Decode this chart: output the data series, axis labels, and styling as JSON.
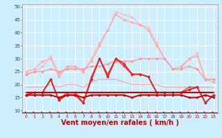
{
  "background_color": "#cceeff",
  "grid_color": "#ffffff",
  "xlabel": "Vent moyen/en rafales ( km/h )",
  "xlabel_color": "#cc0000",
  "xlabel_fontsize": 7,
  "xtick_color": "#cc0000",
  "ytick_color": "#444444",
  "ylim": [
    9,
    51
  ],
  "xlim": [
    -0.5,
    23.5
  ],
  "yticks": [
    10,
    15,
    20,
    25,
    30,
    35,
    40,
    45,
    50
  ],
  "xticks": [
    0,
    1,
    2,
    3,
    4,
    5,
    6,
    7,
    8,
    9,
    10,
    11,
    12,
    13,
    14,
    15,
    16,
    17,
    18,
    19,
    20,
    21,
    22,
    23
  ],
  "lines": [
    {
      "y": [
        24,
        25,
        27,
        31,
        24,
        26,
        27,
        25,
        30,
        36,
        41,
        48,
        47,
        46,
        43,
        42,
        36,
        30,
        26,
        26,
        30,
        32,
        22,
        22
      ],
      "color": "#ffbbbb",
      "lw": 1.0,
      "marker": "D",
      "ms": 2.0,
      "zorder": 2
    },
    {
      "y": [
        25,
        26,
        29,
        30,
        23,
        27,
        27,
        25,
        29,
        35,
        41,
        47,
        45,
        44,
        43,
        41,
        35,
        30,
        26,
        27,
        30,
        31,
        22,
        21
      ],
      "color": "#ffaaaa",
      "lw": 1.0,
      "marker": "D",
      "ms": 2.0,
      "zorder": 2
    },
    {
      "y": [
        24,
        25,
        25,
        26,
        25,
        26,
        26,
        26,
        27,
        27,
        28,
        29,
        29,
        29,
        30,
        30,
        30,
        30,
        26,
        26,
        27,
        26,
        22,
        22
      ],
      "color": "#ff9999",
      "lw": 1.0,
      "marker": "D",
      "ms": 2.0,
      "zorder": 2
    },
    {
      "y": [
        16,
        17,
        17,
        22,
        14,
        16,
        16,
        13,
        22,
        30,
        23,
        30,
        28,
        24,
        24,
        23,
        17,
        17,
        17,
        17,
        18,
        19,
        13,
        16
      ],
      "color": "#dd2222",
      "lw": 1.3,
      "marker": "D",
      "ms": 2.0,
      "zorder": 4
    },
    {
      "y": [
        16,
        17,
        17,
        22,
        14,
        17,
        17,
        13,
        23,
        30,
        24,
        30,
        27,
        24,
        24,
        23,
        17,
        17,
        17,
        17,
        19,
        19,
        13,
        16
      ],
      "color": "#ff4444",
      "lw": 1.1,
      "marker": "D",
      "ms": 2.0,
      "zorder": 3
    },
    {
      "y": [
        17,
        17,
        17,
        17,
        17,
        17,
        17,
        17,
        17,
        17,
        17,
        17,
        17,
        17,
        17,
        17,
        17,
        17,
        17,
        17,
        17,
        17,
        17,
        17
      ],
      "color": "#cc0000",
      "lw": 1.5,
      "marker": null,
      "ms": 0,
      "zorder": 5
    },
    {
      "y": [
        16,
        16,
        16,
        16,
        15,
        16,
        16,
        15,
        16,
        16,
        16,
        16,
        16,
        15,
        16,
        16,
        16,
        16,
        16,
        16,
        15,
        15,
        16,
        15
      ],
      "color": "#cc0000",
      "lw": 1.5,
      "marker": "D",
      "ms": 1.8,
      "zorder": 6
    },
    {
      "y": [
        19,
        19,
        19,
        20,
        19,
        20,
        20,
        19,
        21,
        22,
        22,
        22,
        21,
        20,
        20,
        20,
        20,
        19,
        19,
        19,
        19,
        19,
        19,
        19
      ],
      "color": "#ffaaaa",
      "lw": 1.0,
      "marker": null,
      "ms": 0,
      "zorder": 2
    }
  ],
  "arrow_color": "#cc0000",
  "bottom_line_y": 9.5
}
